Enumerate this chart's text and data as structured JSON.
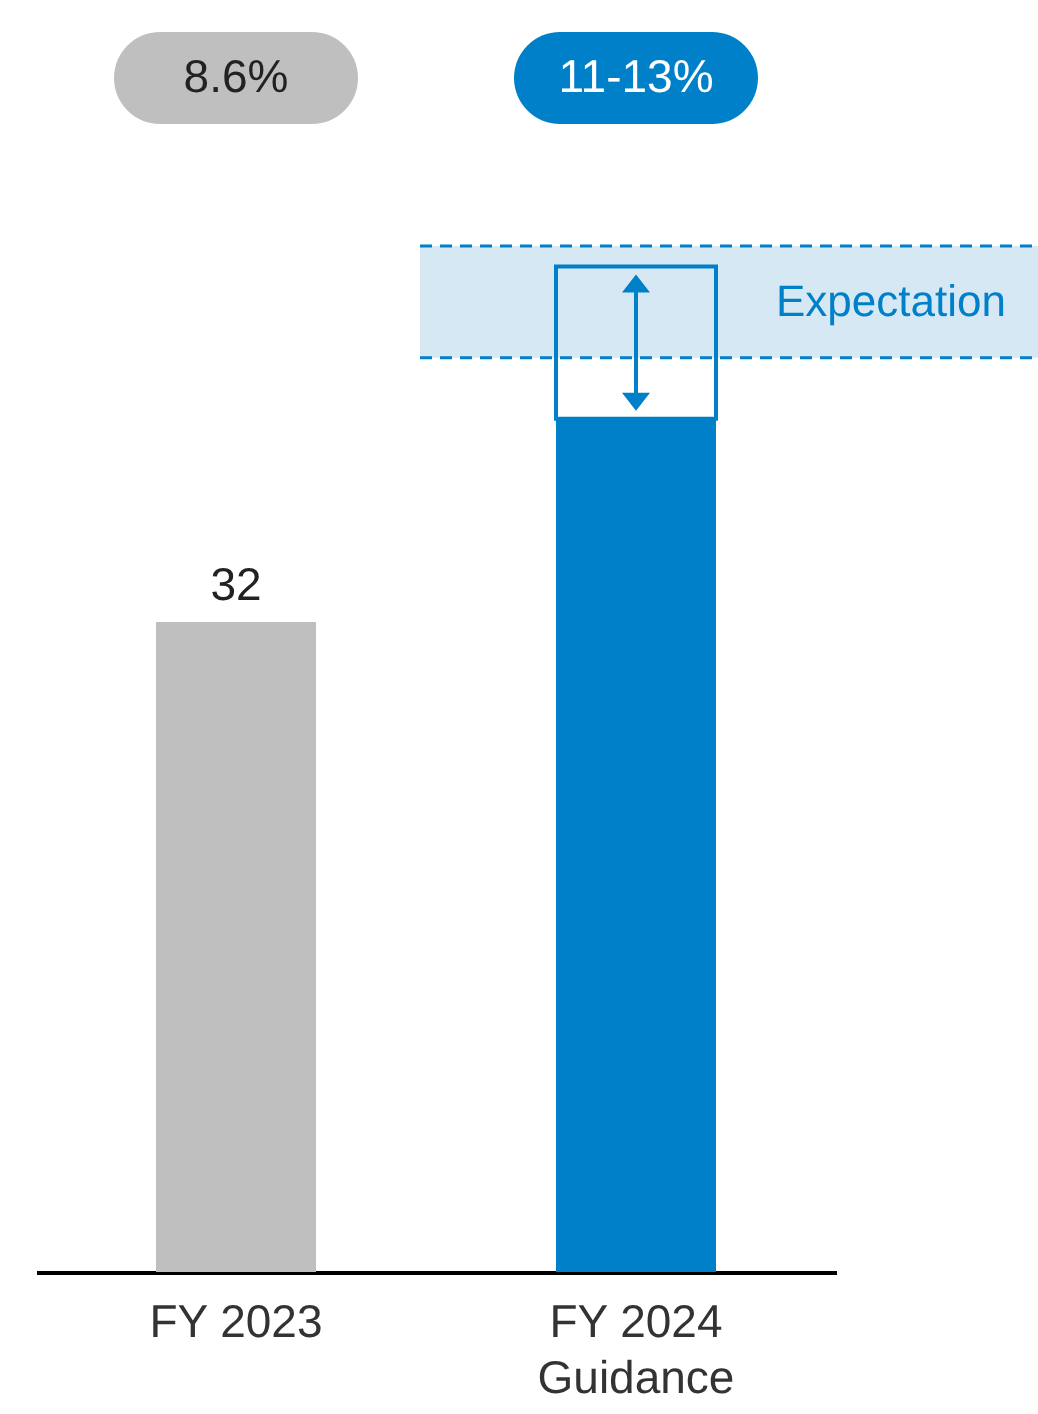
{
  "chart_data": {
    "type": "bar",
    "stacked": true,
    "categories": [
      "FY 2023",
      "FY 2024\nGuidance"
    ],
    "series": [
      {
        "colors": [
          "#bfbfbf",
          "#0080c8"
        ],
        "values": [
          32,
          42
        ],
        "value_labels": [
          "32",
          null
        ]
      },
      {
        "color": "#0080c8",
        "values": [
          null,
          7.5
        ]
      }
    ],
    "bands": [
      {
        "axis": "y",
        "from": 45,
        "to": 50.5,
        "label": "Expectation",
        "color": "#d5e8f4"
      }
    ],
    "annotations": [
      "8.6%",
      "11-13%"
    ]
  }
}
